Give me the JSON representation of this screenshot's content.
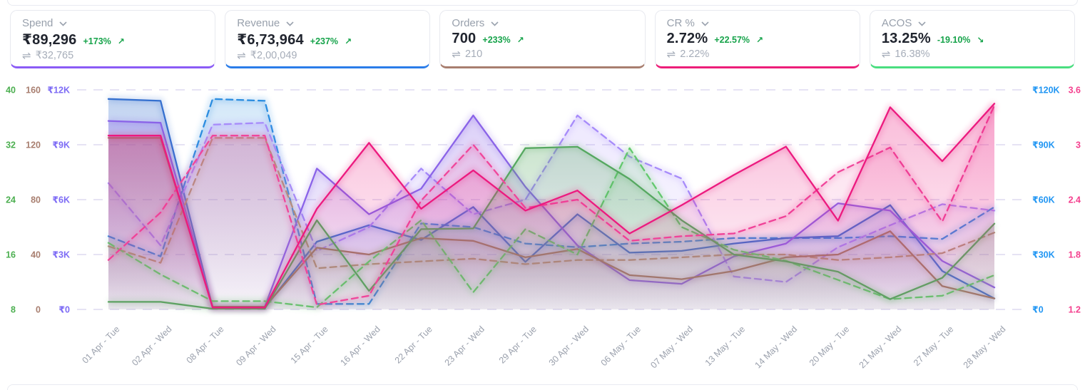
{
  "icons": {
    "compare": "⇌",
    "chevron": "chevron-down"
  },
  "cards": [
    {
      "label": "Spend",
      "value": "₹89,296",
      "delta": "+173%",
      "arrow": "↗",
      "compare_value": "₹32,765",
      "accent": "#8b5cf6"
    },
    {
      "label": "Revenue",
      "value": "₹6,73,964",
      "delta": "+237%",
      "arrow": "↗",
      "compare_value": "₹2,00,049",
      "accent": "#2b7de9"
    },
    {
      "label": "Orders",
      "value": "700",
      "delta": "+233%",
      "arrow": "↗",
      "compare_value": "210",
      "accent": "#a87e6f"
    },
    {
      "label": "CR %",
      "value": "2.72%",
      "delta": "+22.57%",
      "arrow": "↗",
      "compare_value": "2.22%",
      "accent": "#ed1e79"
    },
    {
      "label": "ACOS",
      "value": "13.25%",
      "delta": "-19.10%",
      "arrow": "↘",
      "compare_value": "16.38%",
      "accent": "#4ade80"
    }
  ],
  "delta_color": "#16a34a",
  "chart_data": {
    "type": "line",
    "grid": "horizontal-dashed",
    "legend": "none",
    "categories": [
      "01 Apr - Tue",
      "02 Apr - Wed",
      "08 Apr - Tue",
      "09 Apr - Wed",
      "15 Apr - Tue",
      "16 Apr - Wed",
      "22 Apr - Tue",
      "23 Apr - Wed",
      "29 Apr - Tue",
      "30 Apr - Wed",
      "06 May - Tue",
      "07 May - Wed",
      "13 May - Tue",
      "14 May - Wed",
      "20 May - Tue",
      "21 May - Wed",
      "27 May - Tue",
      "28 May - Wed"
    ],
    "axes": [
      {
        "id": "acos",
        "side": "left",
        "order": 0,
        "color": "#4caf50",
        "range": [
          8,
          40
        ],
        "ticks": [
          "40",
          "32",
          "24",
          "16",
          "8"
        ]
      },
      {
        "id": "orders",
        "side": "left",
        "order": 1,
        "color": "#a87e6f",
        "range": [
          0,
          160
        ],
        "ticks": [
          "160",
          "120",
          "80",
          "40",
          "0"
        ]
      },
      {
        "id": "spend",
        "side": "left",
        "order": 2,
        "color": "#7d6bf5",
        "range": [
          0,
          12
        ],
        "ticks": [
          "₹12K",
          "₹9K",
          "₹6K",
          "₹3K",
          "₹0"
        ]
      },
      {
        "id": "revenue",
        "side": "right",
        "order": 0,
        "color": "#2196f3",
        "range": [
          0,
          120
        ],
        "ticks": [
          "₹120K",
          "₹90K",
          "₹60K",
          "₹30K",
          "₹0"
        ]
      },
      {
        "id": "cr",
        "side": "right",
        "order": 1,
        "color": "#f43f8e",
        "range": [
          1.2,
          3.6
        ],
        "ticks": [
          "3.6",
          "3",
          "2.4",
          "1.8",
          "1.2"
        ]
      }
    ],
    "series": [
      {
        "name": "Revenue (previous)",
        "axis": "revenue",
        "style": "dashed",
        "color": "#2b8de0",
        "values": [
          40,
          29,
          115,
          114,
          3,
          3,
          47,
          45,
          36,
          34,
          36,
          37,
          39,
          39,
          39,
          40,
          38.5,
          56
        ]
      },
      {
        "name": "Revenue",
        "axis": "revenue",
        "style": "solid",
        "color": "#3570cf",
        "values": [
          115,
          114,
          1,
          0.8,
          37,
          46,
          38,
          56,
          26,
          52,
          31,
          32,
          36,
          39,
          40,
          57,
          21,
          6
        ]
      },
      {
        "name": "Spend (previous)",
        "axis": "spend",
        "style": "dashed",
        "color": "#a78bfa",
        "values": [
          6.9,
          3.5,
          10.1,
          10.2,
          3.2,
          4.5,
          7.7,
          5.2,
          6.0,
          10.6,
          8.35,
          7.15,
          1.8,
          1.5,
          3.4,
          4.6,
          5.75,
          5.4
        ]
      },
      {
        "name": "Spend",
        "axis": "spend",
        "style": "solid",
        "color": "#8a63e8",
        "values": [
          10.3,
          10.2,
          0.15,
          0.15,
          7.7,
          5.2,
          6.6,
          10.6,
          6.7,
          3.5,
          1.6,
          1.4,
          2.9,
          3.6,
          5.8,
          5.4,
          2.65,
          1.2
        ]
      },
      {
        "name": "Orders (previous)",
        "axis": "orders",
        "style": "dashed",
        "color": "#b3917e",
        "values": [
          46,
          34,
          125,
          125,
          30,
          33,
          35,
          37,
          33,
          36,
          36,
          38,
          40,
          40,
          36,
          38,
          41,
          56
        ]
      },
      {
        "name": "Orders",
        "axis": "orders",
        "style": "solid",
        "color": "#a1786a",
        "values": [
          125,
          125,
          2,
          2,
          45,
          40,
          52,
          50,
          38,
          44,
          25,
          22,
          28,
          38,
          40,
          57,
          17,
          8
        ]
      },
      {
        "name": "ACOS (previous)",
        "axis": "acos",
        "style": "dashed",
        "color": "#63c96e",
        "values": [
          17.7,
          13.1,
          9.2,
          9.2,
          8.3,
          15,
          21,
          10.5,
          19.7,
          16,
          31.5,
          20,
          16.7,
          15.1,
          12.3,
          9.5,
          10,
          13
        ]
      },
      {
        "name": "ACOS",
        "axis": "acos",
        "style": "solid",
        "color": "#55a860",
        "values": [
          9.1,
          9.1,
          8.1,
          8.1,
          21,
          10.7,
          19.7,
          19.8,
          31.5,
          31.7,
          27,
          21,
          16,
          15,
          13.5,
          9.5,
          12.6,
          20.5
        ]
      },
      {
        "name": "CR % (previous)",
        "axis": "cr",
        "style": "dashed",
        "color": "#f0479b",
        "values": [
          1.74,
          2.26,
          3.1,
          3.1,
          1.25,
          1.35,
          2.39,
          3.0,
          2.31,
          2.4,
          1.95,
          2.0,
          2.03,
          2.22,
          2.7,
          2.97,
          2.16,
          3.43
        ]
      },
      {
        "name": "CR %",
        "axis": "cr",
        "style": "solid",
        "color": "#ec1a7f",
        "values": [
          3.1,
          3.1,
          1.22,
          1.22,
          2.3,
          3.02,
          2.3,
          2.72,
          2.28,
          2.5,
          2.03,
          2.34,
          2.67,
          2.98,
          2.17,
          3.41,
          2.82,
          3.45
        ]
      }
    ]
  }
}
